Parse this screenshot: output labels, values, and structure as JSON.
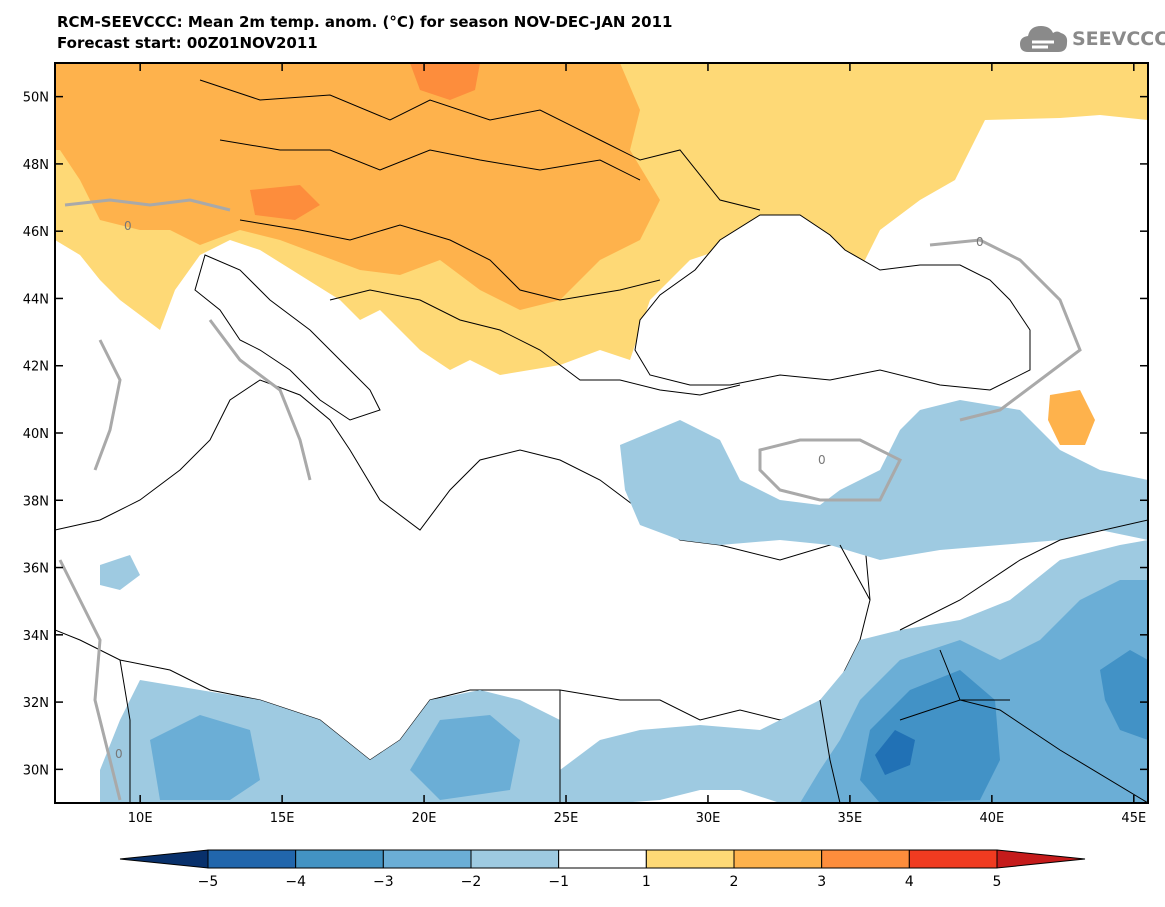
{
  "header": {
    "title_line1": "RCM-SEEVCCC: Mean 2m temp. anom. (°C) for season NOV-DEC-JAN 2011",
    "title_line2": "Forecast start: 00Z01NOV2011",
    "logo_text": "SEEVCCC"
  },
  "map": {
    "lon_labels": [
      "10E",
      "15E",
      "20E",
      "25E",
      "30E",
      "35E",
      "40E",
      "45E"
    ],
    "lat_labels": [
      "50N",
      "48N",
      "46N",
      "44N",
      "42N",
      "40N",
      "38N",
      "36N",
      "34N",
      "32N",
      "30N"
    ],
    "lon_values": [
      10,
      15,
      20,
      25,
      30,
      35,
      40,
      45
    ],
    "lat_values": [
      50,
      48,
      46,
      44,
      42,
      40,
      38,
      36,
      34,
      32,
      30
    ],
    "lon_range": [
      7,
      45.5
    ],
    "lat_range": [
      29,
      51
    ],
    "zero_contour_label": "0",
    "colors": {
      "land_warm_1": "#fed976",
      "warm_2": "#feb24c",
      "warm_3": "#fd8d3c",
      "warm_4": "#f03b20",
      "cold_1": "#9ecae1",
      "cold_2": "#6baed6",
      "cold_3": "#4292c6",
      "cold_4": "#2171b5",
      "contour": "#a9a9a9"
    }
  },
  "colorbar": {
    "labels": [
      "−5",
      "−4",
      "−3",
      "−2",
      "−1",
      "1",
      "2",
      "3",
      "4",
      "5"
    ],
    "colors": [
      "#08306b",
      "#2166ac",
      "#4393c3",
      "#6baed6",
      "#9ecae1",
      "#ffffff",
      "#fed976",
      "#feb24c",
      "#fd8d3c",
      "#f03b20",
      "#c51b1b"
    ]
  }
}
